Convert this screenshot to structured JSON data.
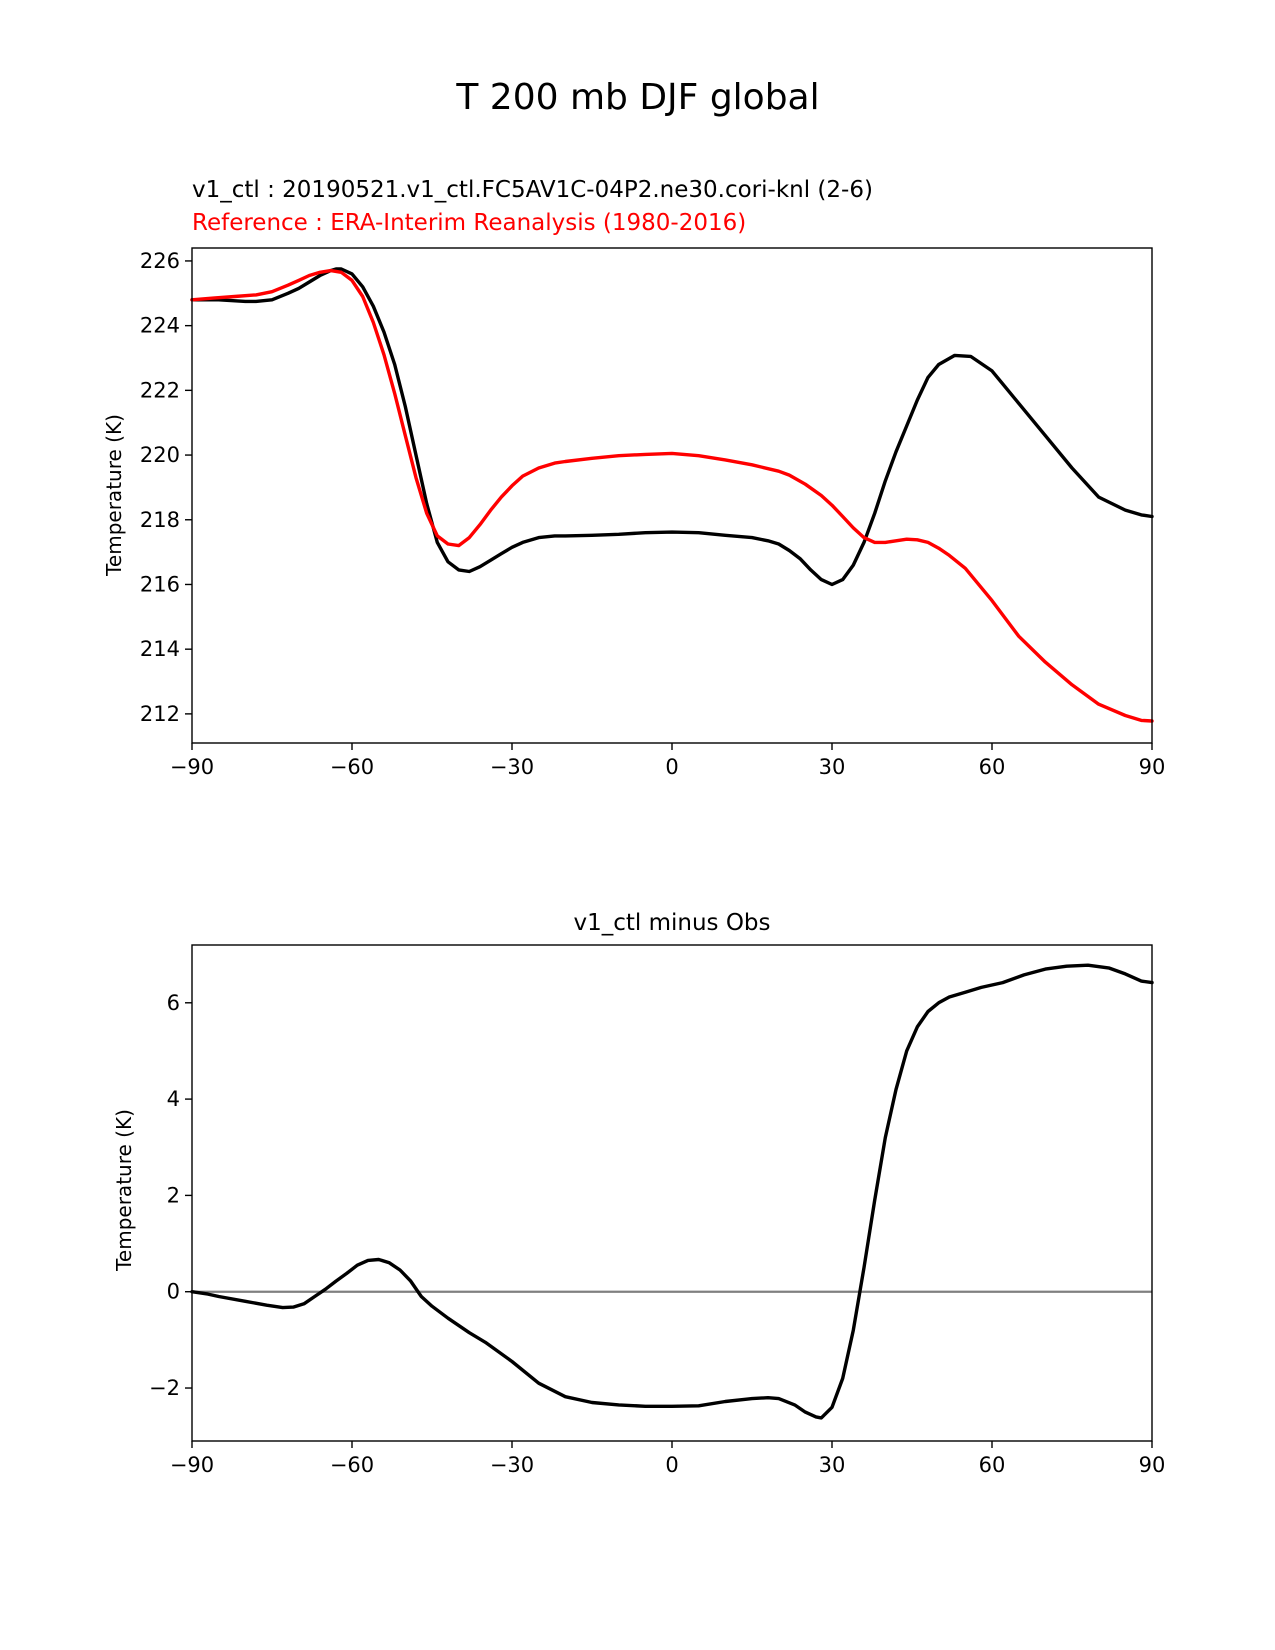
{
  "figure": {
    "title": "T 200 mb DJF global"
  },
  "chart_data": [
    {
      "type": "line",
      "test_label": "v1_ctl : 20190521.v1_ctl.FC5AV1C-04P2.ne30.cori-knl (2-6)",
      "ref_label": "Reference : ERA-Interim Reanalysis (1980-2016)",
      "xlabel": "",
      "ylabel": "Temperature (K)",
      "xlim": [
        -90,
        90
      ],
      "ylim": [
        211.1,
        226.4
      ],
      "xticks": [
        -90,
        -60,
        -30,
        0,
        30,
        60,
        90
      ],
      "xtick_labels": [
        "−90",
        "−60",
        "−30",
        "0",
        "30",
        "60",
        "90"
      ],
      "yticks": [
        212,
        214,
        216,
        218,
        220,
        222,
        224,
        226
      ],
      "ytick_labels": [
        "212",
        "214",
        "216",
        "218",
        "220",
        "222",
        "224",
        "226"
      ],
      "series": [
        {
          "name": "v1_ctl",
          "color": "#000000",
          "x": [
            -90,
            -85,
            -80,
            -78,
            -75,
            -72,
            -70,
            -68,
            -66,
            -64,
            -63,
            -62,
            -60,
            -58,
            -56,
            -54,
            -52,
            -50,
            -48,
            -46,
            -44,
            -42,
            -40,
            -38,
            -36,
            -34,
            -32,
            -30,
            -28,
            -25,
            -22,
            -20,
            -15,
            -10,
            -5,
            0,
            5,
            10,
            15,
            18,
            20,
            22,
            24,
            26,
            28,
            30,
            32,
            34,
            36,
            38,
            40,
            42,
            44,
            46,
            48,
            50,
            53,
            56,
            60,
            65,
            70,
            75,
            80,
            85,
            88,
            90
          ],
          "values": [
            224.8,
            224.8,
            224.75,
            224.75,
            224.8,
            225.0,
            225.15,
            225.35,
            225.55,
            225.7,
            225.75,
            225.75,
            225.6,
            225.2,
            224.6,
            223.8,
            222.8,
            221.5,
            220.0,
            218.5,
            217.3,
            216.7,
            216.45,
            216.4,
            216.55,
            216.75,
            216.95,
            217.15,
            217.3,
            217.45,
            217.5,
            217.5,
            217.52,
            217.55,
            217.6,
            217.62,
            217.6,
            217.52,
            217.45,
            217.35,
            217.25,
            217.05,
            216.8,
            216.45,
            216.15,
            216.0,
            216.15,
            216.6,
            217.3,
            218.2,
            219.2,
            220.1,
            220.9,
            221.7,
            222.4,
            222.8,
            223.08,
            223.05,
            222.6,
            221.6,
            220.6,
            219.6,
            218.7,
            218.3,
            218.15,
            218.1
          ]
        },
        {
          "name": "ERA-Interim",
          "color": "#ff0000",
          "x": [
            -90,
            -86,
            -82,
            -78,
            -75,
            -72,
            -70,
            -68,
            -66,
            -64,
            -62,
            -60,
            -58,
            -56,
            -54,
            -52,
            -50,
            -48,
            -46,
            -44,
            -42,
            -40,
            -38,
            -36,
            -34,
            -32,
            -30,
            -28,
            -25,
            -22,
            -20,
            -15,
            -10,
            -5,
            0,
            5,
            10,
            15,
            20,
            22,
            25,
            28,
            30,
            32,
            34,
            36,
            38,
            40,
            42,
            44,
            46,
            48,
            50,
            52,
            55,
            60,
            65,
            70,
            75,
            80,
            85,
            88,
            90
          ],
          "values": [
            224.8,
            224.85,
            224.9,
            224.95,
            225.05,
            225.25,
            225.4,
            225.55,
            225.65,
            225.7,
            225.65,
            225.4,
            224.9,
            224.1,
            223.1,
            221.9,
            220.6,
            219.3,
            218.2,
            217.5,
            217.25,
            217.2,
            217.45,
            217.85,
            218.3,
            218.7,
            219.05,
            219.35,
            219.6,
            219.75,
            219.8,
            219.9,
            219.98,
            220.02,
            220.05,
            219.98,
            219.85,
            219.7,
            219.5,
            219.38,
            219.1,
            218.75,
            218.45,
            218.1,
            217.75,
            217.45,
            217.3,
            217.3,
            217.35,
            217.4,
            217.38,
            217.3,
            217.12,
            216.9,
            216.5,
            215.5,
            214.4,
            213.6,
            212.9,
            212.3,
            211.95,
            211.8,
            211.78
          ]
        }
      ]
    },
    {
      "type": "line",
      "title": "v1_ctl minus Obs",
      "xlabel": "",
      "ylabel": "Temperature (K)",
      "xlim": [
        -90,
        90
      ],
      "ylim": [
        -3.1,
        7.2
      ],
      "xticks": [
        -90,
        -60,
        -30,
        0,
        30,
        60,
        90
      ],
      "xtick_labels": [
        "−90",
        "−60",
        "−30",
        "0",
        "30",
        "60",
        "90"
      ],
      "yticks": [
        -2,
        0,
        2,
        4,
        6
      ],
      "ytick_labels": [
        "−2",
        "0",
        "2",
        "4",
        "6"
      ],
      "zero_line": {
        "y": 0,
        "color": "#808080"
      },
      "series": [
        {
          "name": "difference",
          "color": "#000000",
          "x": [
            -90,
            -87,
            -85,
            -80,
            -76,
            -73,
            -71,
            -69,
            -67,
            -65,
            -63,
            -61,
            -59,
            -57,
            -55,
            -53,
            -51,
            -49,
            -47,
            -45,
            -42,
            -38,
            -35,
            -30,
            -25,
            -20,
            -15,
            -10,
            -5,
            0,
            5,
            10,
            15,
            18,
            20,
            23,
            25,
            27,
            28,
            30,
            32,
            34,
            36,
            38,
            40,
            42,
            44,
            46,
            48,
            50,
            52,
            55,
            58,
            62,
            66,
            70,
            74,
            78,
            82,
            85,
            88,
            90
          ],
          "values": [
            0.0,
            -0.05,
            -0.1,
            -0.2,
            -0.28,
            -0.33,
            -0.32,
            -0.25,
            -0.1,
            0.05,
            0.22,
            0.38,
            0.55,
            0.65,
            0.67,
            0.6,
            0.45,
            0.22,
            -0.1,
            -0.3,
            -0.55,
            -0.85,
            -1.05,
            -1.45,
            -1.9,
            -2.18,
            -2.3,
            -2.35,
            -2.38,
            -2.38,
            -2.37,
            -2.28,
            -2.22,
            -2.2,
            -2.22,
            -2.35,
            -2.5,
            -2.6,
            -2.62,
            -2.4,
            -1.8,
            -0.8,
            0.5,
            1.9,
            3.2,
            4.2,
            5.0,
            5.5,
            5.82,
            6.0,
            6.12,
            6.22,
            6.32,
            6.42,
            6.58,
            6.7,
            6.76,
            6.78,
            6.72,
            6.6,
            6.45,
            6.42
          ]
        }
      ]
    }
  ]
}
